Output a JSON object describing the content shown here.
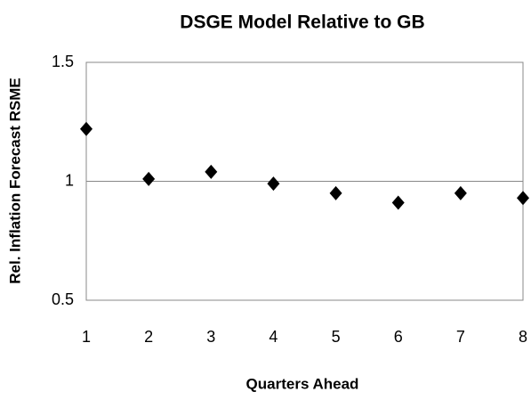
{
  "chart_data": {
    "type": "scatter",
    "title": "DSGE Model Relative to GB",
    "x_label": "Quarters Ahead",
    "y_label": "Rel. Inflation Forecast RSME",
    "x": [
      1,
      2,
      3,
      4,
      5,
      6,
      7,
      8
    ],
    "values": [
      1.22,
      1.01,
      1.04,
      0.99,
      0.95,
      0.91,
      0.95,
      0.93
    ],
    "color": "#000000",
    "xlim": [
      1,
      8
    ],
    "xticks": [
      1,
      2,
      3,
      4,
      5,
      6,
      7,
      8
    ],
    "ylim": [
      0.5,
      1.5
    ],
    "yticks": [
      0.5,
      1,
      1.5
    ],
    "grid": true
  }
}
